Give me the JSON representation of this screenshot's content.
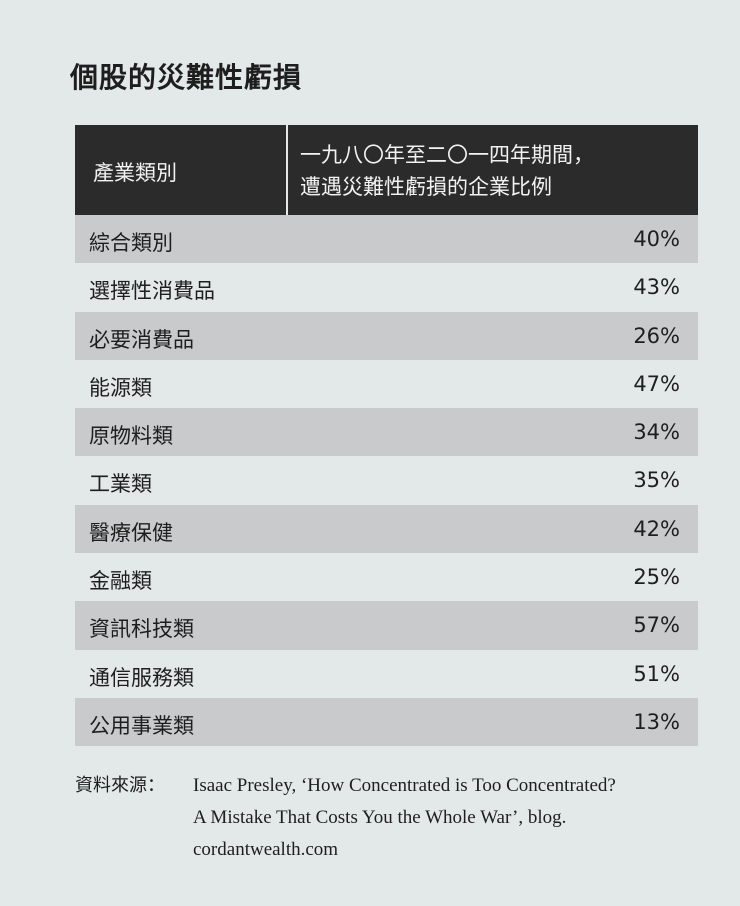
{
  "title": "個股的災難性虧損",
  "table": {
    "header": {
      "category": "產業類別",
      "share": [
        "一九八〇年至二〇一四年期間，",
        "遭遇災難性虧損的企業比例"
      ]
    },
    "rows": [
      [
        "綜合類別",
        "40%"
      ],
      [
        "選擇性消費品",
        "43%"
      ],
      [
        "必要消費品",
        "26%"
      ],
      [
        "能源類",
        "47%"
      ],
      [
        "原物料類",
        "34%"
      ],
      [
        "工業類",
        "35%"
      ],
      [
        "醫療保健",
        "42%"
      ],
      [
        "金融類",
        "25%"
      ],
      [
        "資訊科技類",
        "57%"
      ],
      [
        "通信服務類",
        "51%"
      ],
      [
        "公用事業類",
        "13%"
      ]
    ]
  },
  "source": {
    "label": "資料來源：",
    "lines": [
      "Isaac Presley, ‘How Concentrated is Too Concentrated?",
      "A Mistake That Costs You the Whole War’, blog.",
      "cordantwealth.com"
    ]
  }
}
